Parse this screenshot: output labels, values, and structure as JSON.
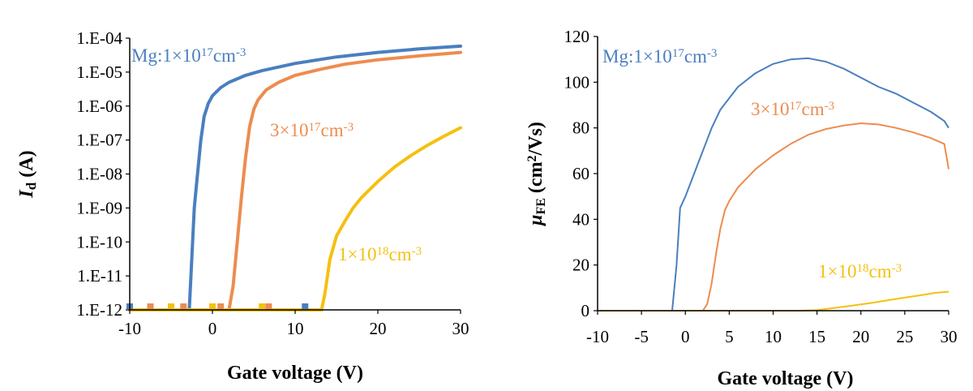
{
  "colors": {
    "blue": "#4a7fbf",
    "orange": "#ed8c4f",
    "yellow": "#f5c00f"
  },
  "chart_data": [
    {
      "type": "line",
      "log_y": true,
      "xlim": [
        -10,
        30
      ],
      "ylim": [
        1e-12,
        0.0001
      ],
      "x_ticks": [
        "-10",
        "0",
        "10",
        "20",
        "30"
      ],
      "x_tick_values": [
        -10,
        0,
        10,
        20,
        30
      ],
      "y_ticks": [
        "1.E-12",
        "1.E-11",
        "1.E-10",
        "1.E-09",
        "1.E-08",
        "1.E-07",
        "1.E-06",
        "1.E-05",
        "1.E-04"
      ],
      "xlabel": "Gate voltage (V)",
      "ylabel_main": "I",
      "ylabel_sub": "d",
      "ylabel_unit": " (A)",
      "series": [
        {
          "name_parts": [
            "Mg:1×10",
            "17",
            "cm",
            "-3"
          ],
          "color": "blue",
          "x": [
            -10,
            -2.8,
            -2.6,
            -2.2,
            -1.8,
            -1.4,
            -1.0,
            -0.5,
            0,
            1,
            2,
            4,
            6,
            10,
            15,
            20,
            25,
            30
          ],
          "y": [
            1e-12,
            1e-12,
            1e-11,
            1e-09,
            1e-08,
            1e-07,
            5e-07,
            1.2e-06,
            2e-06,
            3.5e-06,
            5e-06,
            8e-06,
            1.1e-05,
            1.8e-05,
            2.8e-05,
            3.8e-05,
            4.8e-05,
            5.8e-05
          ]
        },
        {
          "name_parts": [
            "3×10",
            "17",
            "cm",
            "-3"
          ],
          "color": "orange",
          "x": [
            -10,
            2.0,
            2.5,
            3.0,
            3.5,
            4.0,
            4.5,
            5.0,
            5.5,
            6.5,
            8,
            10,
            13,
            16,
            20,
            25,
            30
          ],
          "y": [
            1e-12,
            1e-12,
            5e-12,
            1e-10,
            2e-09,
            3e-08,
            2.5e-07,
            8e-07,
            1.5e-06,
            3e-06,
            5e-06,
            8e-06,
            1.2e-05,
            1.7e-05,
            2.3e-05,
            3e-05,
            3.8e-05
          ]
        },
        {
          "name_parts": [
            "1×10",
            "18",
            "cm",
            "-3"
          ],
          "color": "yellow",
          "x": [
            -10,
            13.2,
            13.6,
            14.2,
            15.0,
            16.0,
            17.0,
            18.0,
            20.0,
            22.0,
            24.0,
            26.0,
            28.0,
            30.0
          ],
          "y": [
            1e-12,
            1e-12,
            3e-12,
            3e-11,
            1.5e-10,
            4e-10,
            1e-09,
            2e-09,
            6e-09,
            1.6e-08,
            3.5e-08,
            7e-08,
            1.3e-07,
            2.3e-07
          ]
        }
      ]
    },
    {
      "type": "line",
      "xlim": [
        -10,
        30
      ],
      "ylim": [
        0,
        120
      ],
      "x_ticks": [
        "-10",
        "-5",
        "0",
        "5",
        "10",
        "15",
        "20",
        "25",
        "30"
      ],
      "x_tick_values": [
        -10,
        -5,
        0,
        5,
        10,
        15,
        20,
        25,
        30
      ],
      "y_ticks": [
        "0",
        "20",
        "40",
        "60",
        "80",
        "100",
        "120"
      ],
      "y_tick_values": [
        0,
        20,
        40,
        60,
        80,
        100,
        120
      ],
      "xlabel": "Gate voltage (V)",
      "ylabel_main": "μ",
      "ylabel_sub": "FE",
      "ylabel_unit_pre": " (cm",
      "ylabel_unit_sup": "2",
      "ylabel_unit_post": "/Vs)",
      "series": [
        {
          "name_parts": [
            "Mg:1×10",
            "17",
            "cm",
            "-3"
          ],
          "color": "blue",
          "x": [
            -10,
            -1.5,
            -1.0,
            -0.6,
            0,
            1,
            2,
            3,
            4,
            6,
            8,
            10,
            12,
            14,
            16,
            18,
            20,
            22,
            24,
            26,
            28,
            29.5,
            30
          ],
          "y": [
            0,
            0,
            20,
            45,
            50,
            60,
            70,
            80,
            88,
            98,
            104,
            108,
            110,
            110.5,
            109,
            106,
            102,
            98,
            95,
            91,
            87,
            83,
            80
          ]
        },
        {
          "name_parts": [
            "3×10",
            "17",
            "cm",
            "-3"
          ],
          "color": "orange",
          "x": [
            -10,
            2.0,
            2.5,
            3.0,
            3.5,
            4.0,
            4.5,
            5.0,
            6,
            8,
            10,
            12,
            14,
            16,
            18,
            20,
            22,
            24,
            26,
            28,
            29.5,
            30
          ],
          "y": [
            0,
            0,
            3,
            12,
            25,
            36,
            44,
            48,
            54,
            62,
            68,
            73,
            77,
            79.5,
            81,
            82,
            81.5,
            80,
            78,
            75.5,
            73,
            62
          ]
        },
        {
          "name_parts": [
            "1×10",
            "18",
            "cm",
            "-3"
          ],
          "color": "yellow",
          "x": [
            -10,
            13,
            15,
            17,
            19,
            21,
            23,
            25,
            27,
            28.5,
            30
          ],
          "y": [
            0,
            0,
            0.3,
            1.2,
            2.2,
            3.3,
            4.5,
            5.7,
            6.9,
            7.8,
            8.3
          ]
        }
      ]
    }
  ]
}
